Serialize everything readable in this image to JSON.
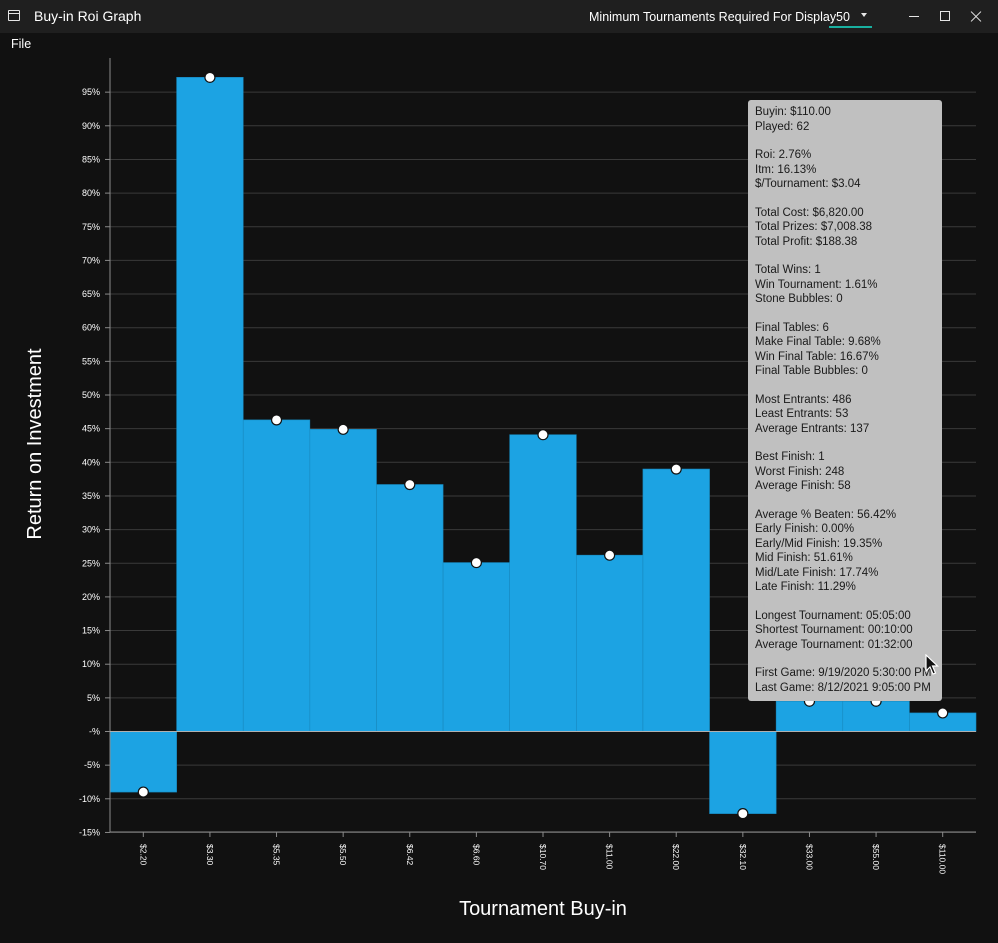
{
  "window": {
    "title": "Buy-in Roi Graph",
    "min_tournaments_label": "Minimum Tournaments Required For Display",
    "min_tournaments_value": "50"
  },
  "menu": {
    "file": "File"
  },
  "colors": {
    "bar": "#1ca3e3",
    "accent": "#19b0a0",
    "background": "#111111",
    "tooltip": "#c0c0c0"
  },
  "chart_data": {
    "type": "bar",
    "xlabel": "Tournament Buy-in",
    "ylabel": "Return on Investment",
    "categories": [
      "$2.20",
      "$3.30",
      "$5.35",
      "$5.50",
      "$6.42",
      "$6.60",
      "$10.70",
      "$11.00",
      "$22.00",
      "$32.10",
      "$33.00",
      "$55.00",
      "$110.00"
    ],
    "values": [
      -9.0,
      97.2,
      46.3,
      44.9,
      36.7,
      25.1,
      44.1,
      26.2,
      39.0,
      -12.2,
      4.5,
      4.5,
      2.76
    ],
    "ylim": [
      -15,
      100
    ],
    "yticks": [
      "-15%",
      "-10%",
      "-5%",
      "-%",
      "5%",
      "10%",
      "15%",
      "20%",
      "25%",
      "30%",
      "35%",
      "40%",
      "45%",
      "50%",
      "55%",
      "60%",
      "65%",
      "70%",
      "75%",
      "80%",
      "85%",
      "90%",
      "95%"
    ],
    "grid": true
  },
  "tooltip": {
    "lines": [
      "Buyin: $110.00",
      "Played: 62",
      "",
      "Roi: 2.76%",
      "Itm: 16.13%",
      "$/Tournament: $3.04",
      "",
      "Total Cost: $6,820.00",
      "Total Prizes: $7,008.38",
      "Total Profit: $188.38",
      "",
      "Total Wins: 1",
      "Win Tournament: 1.61%",
      "Stone Bubbles: 0",
      "",
      "Final Tables: 6",
      "Make Final Table: 9.68%",
      "Win Final Table: 16.67%",
      "Final Table Bubbles: 0",
      "",
      "Most Entrants: 486",
      "Least Entrants: 53",
      "Average Entrants: 137",
      "",
      "Best Finish: 1",
      "Worst Finish: 248",
      "Average Finish: 58",
      "",
      "Average % Beaten: 56.42%",
      "Early Finish: 0.00%",
      "Early/Mid Finish: 19.35%",
      "Mid Finish: 51.61%",
      "Mid/Late Finish: 17.74%",
      "Late Finish: 11.29%",
      "",
      "Longest Tournament: 05:05:00",
      "Shortest Tournament: 00:10:00",
      "Average Tournament: 01:32:00",
      "",
      "First Game: 9/19/2020 5:30:00 PM",
      "Last Game: 8/12/2021 9:05:00 PM"
    ]
  }
}
